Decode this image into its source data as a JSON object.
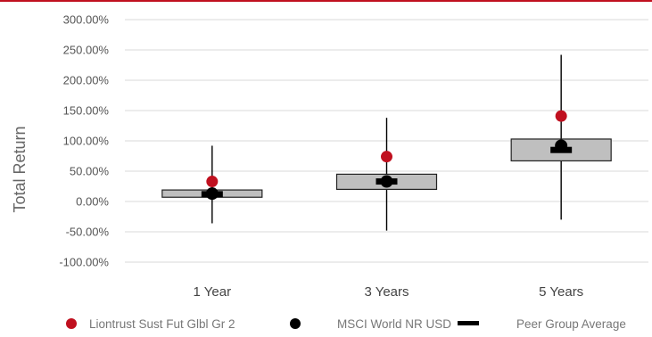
{
  "chart_data": {
    "type": "box",
    "title": "",
    "xlabel": "",
    "ylabel": "Total Return",
    "ylim": [
      -100,
      300
    ],
    "y_tick_values": [
      -100,
      -50,
      0,
      50,
      100,
      150,
      200,
      250,
      300
    ],
    "y_tick_labels": [
      "-100.00%",
      "-50.00%",
      "0.00%",
      "50.00%",
      "100.00%",
      "150.00%",
      "200.00%",
      "250.00%",
      "300.00%"
    ],
    "grid": true,
    "legend_position": "bottom",
    "categories": [
      "1 Year",
      "3 Years",
      "5 Years"
    ],
    "ranges": [
      {
        "min": -36,
        "q1": 7,
        "q3": 19,
        "max": 92
      },
      {
        "min": -48,
        "q1": 20,
        "q3": 45,
        "max": 138
      },
      {
        "min": -30,
        "q1": 67,
        "q3": 103,
        "max": 242
      }
    ],
    "series": [
      {
        "name": "Liontrust Sust Fut Glbl Gr 2",
        "marker": "dot",
        "color": "#c0101f",
        "values": [
          33,
          74,
          141
        ]
      },
      {
        "name": "MSCI World NR USD",
        "marker": "dot",
        "color": "#000000",
        "values": [
          13,
          33,
          92
        ]
      },
      {
        "name": "Peer Group Average",
        "marker": "dash",
        "color": "#000000",
        "values": [
          12,
          33,
          85
        ]
      }
    ],
    "box_color": "#bfbfbf"
  }
}
